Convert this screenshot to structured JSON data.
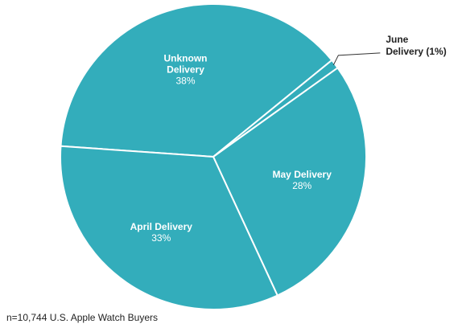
{
  "chart_data": {
    "type": "pie",
    "slices": [
      {
        "name_lines": [
          "Unknown",
          "Delivery"
        ],
        "label": "Unknown Delivery",
        "value": 38,
        "value_label": "38%",
        "label_placement": "inside"
      },
      {
        "name_lines": [
          "June",
          "Delivery (1%)"
        ],
        "label": "June Delivery",
        "value": 1,
        "value_label": "",
        "label_placement": "outside"
      },
      {
        "name_lines": [
          "May Delivery"
        ],
        "label": "May Delivery",
        "value": 28,
        "value_label": "28%",
        "label_placement": "inside"
      },
      {
        "name_lines": [
          "April Delivery"
        ],
        "label": "April Delivery",
        "value": 33,
        "value_label": "33%",
        "label_placement": "inside"
      }
    ],
    "slice_color": "#33adbb",
    "separator_color": "#ffffff"
  },
  "footnote": "n=10,744 U.S. Apple Watch Buyers"
}
